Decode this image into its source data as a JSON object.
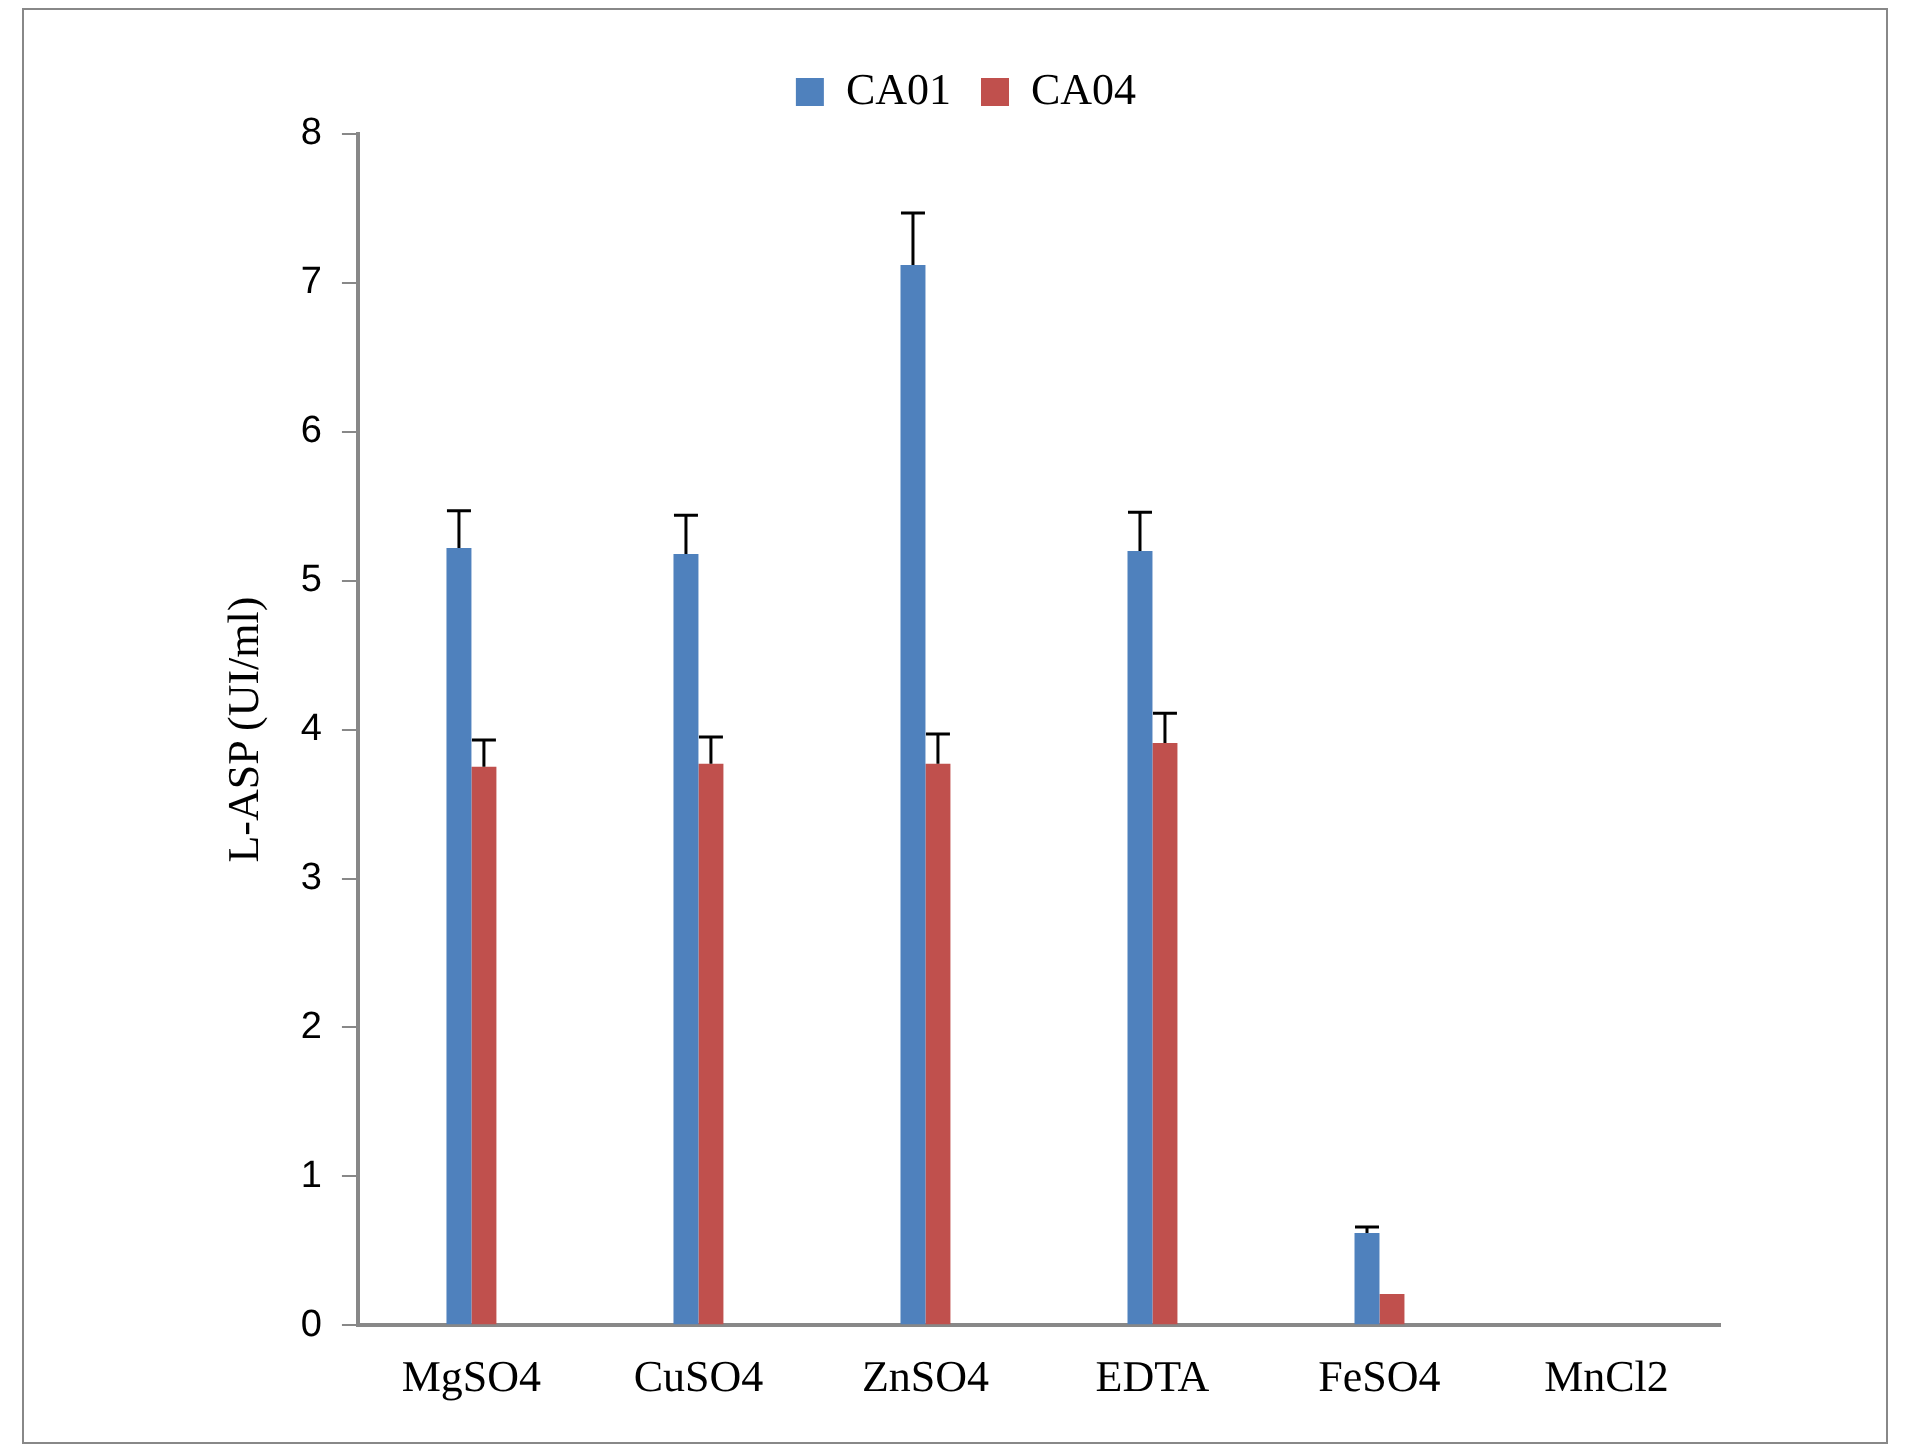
{
  "chart_data": {
    "type": "bar",
    "ylabel": "L-ASP (UI/ml)",
    "categories": [
      "MgSO4",
      "CuSO4",
      "ZnSO4",
      "EDTA",
      "FeSO4",
      "MnCl2"
    ],
    "series": [
      {
        "name": "CA01",
        "color": "#4f81bd",
        "values": [
          5.22,
          5.18,
          7.12,
          5.2,
          0.62,
          0
        ],
        "errors": [
          [
            5.22,
            5.47
          ],
          [
            5.18,
            5.44
          ],
          [
            7.12,
            7.47
          ],
          [
            5.2,
            5.46
          ],
          [
            0.62,
            0.66
          ],
          null
        ]
      },
      {
        "name": "CA04",
        "color": "#c0504d",
        "values": [
          3.75,
          3.77,
          3.77,
          3.91,
          0.21,
          0
        ],
        "errors": [
          [
            3.75,
            3.93
          ],
          [
            3.77,
            3.95
          ],
          [
            3.77,
            3.97
          ],
          [
            3.91,
            4.11
          ],
          null,
          null
        ]
      }
    ],
    "ylim": [
      0,
      8
    ],
    "yticks": [
      0,
      1,
      2,
      3,
      4,
      5,
      6,
      7,
      8
    ],
    "grid": false,
    "legend": "top"
  }
}
